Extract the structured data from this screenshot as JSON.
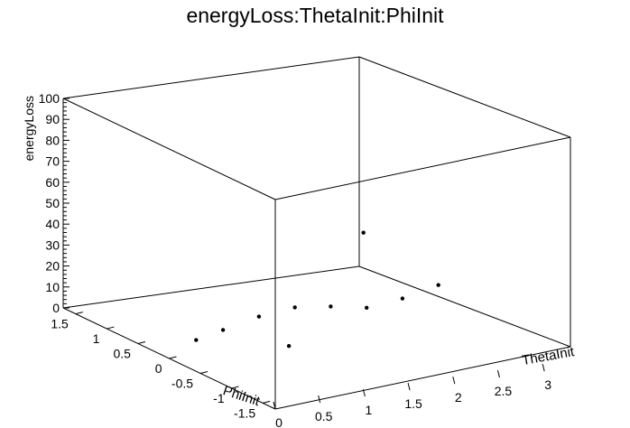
{
  "chart_data": {
    "type": "scatter",
    "title": "energyLoss:ThetaInit:PhiInit",
    "zlabel": "energyLoss",
    "xlabel": "ThetaInit",
    "ylabel": "PhiInit",
    "zlim": [
      0,
      100
    ],
    "xlim": [
      0,
      3.3
    ],
    "ylim": [
      -1.7,
      1.7
    ],
    "z_ticks": [
      "0",
      "10",
      "20",
      "30",
      "40",
      "50",
      "60",
      "70",
      "80",
      "90",
      "100"
    ],
    "x_ticks": [
      "0",
      "0.5",
      "1",
      "1.5",
      "2",
      "2.5",
      "3"
    ],
    "y_ticks": [
      "-1.5",
      "-1",
      "-0.5",
      "0",
      "0.5",
      "1",
      "1.5"
    ],
    "grid": false,
    "marker": "dot",
    "marker_color": "#000000",
    "points": [
      {
        "x": 0.3,
        "y": 0.0,
        "z": 7
      },
      {
        "x": 0.6,
        "y": 0.0,
        "z": 10
      },
      {
        "x": 1.0,
        "y": 0.0,
        "z": 14
      },
      {
        "x": 1.4,
        "y": 0.0,
        "z": 16
      },
      {
        "x": 1.8,
        "y": 0.0,
        "z": 14
      },
      {
        "x": 2.2,
        "y": 0.0,
        "z": 11
      },
      {
        "x": 2.6,
        "y": 0.0,
        "z": 13
      },
      {
        "x": 3.0,
        "y": 0.0,
        "z": 17
      },
      {
        "x": 0.5,
        "y": -1.2,
        "z": 20
      },
      {
        "x": 3.0,
        "y": 1.2,
        "z": 25
      }
    ]
  }
}
